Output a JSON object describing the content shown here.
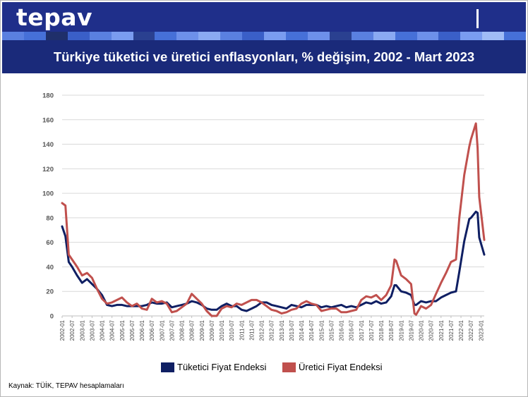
{
  "header": {
    "logo": "tepav"
  },
  "title": "Türkiye tüketici ve üretici enflasyonları, % değişim, 2002 - Mart 2023",
  "source": "Kaynak: TÜİK, TEPAV hesaplamaları",
  "colors": {
    "header": "#1f2f8a",
    "cpi": "#0f1f63",
    "ppi": "#c0504d",
    "grid": "#d9d9d9"
  },
  "chart_data": {
    "type": "line",
    "title": "Türkiye tüketici ve üretici enflasyonları, % değişim, 2002 - Mart 2023",
    "xlabel": "",
    "ylabel": "",
    "ylim": [
      0,
      180
    ],
    "yticks": [
      0,
      20,
      40,
      60,
      80,
      100,
      120,
      140,
      160,
      180
    ],
    "grid": true,
    "legend": "bottom",
    "xticks": [
      "2002-01",
      "2002-07",
      "2003-01",
      "2003-07",
      "2004-01",
      "2004-07",
      "2005-01",
      "2005-07",
      "2006-01",
      "2006-07",
      "2007-01",
      "2007-07",
      "2008-01",
      "2008-07",
      "2009-01",
      "2009-07",
      "2010-01",
      "2010-07",
      "2011-01",
      "2011-07",
      "2012-01",
      "2012-07",
      "2013-01",
      "2013-07",
      "2014-01",
      "2014-07",
      "2015-01",
      "2015-07",
      "2016-01",
      "2016-07",
      "2017-01",
      "2017-07",
      "2018-01",
      "2018-07",
      "2019-01",
      "2019-07",
      "2020-01",
      "2020-07",
      "2021-01",
      "2021-07",
      "2022-01",
      "2022-07",
      "2023-01"
    ],
    "series": [
      {
        "name": "Tüketici Fiyat Endeksi",
        "color": "#0f1f63",
        "points": [
          [
            "2002-01",
            73
          ],
          [
            "2002-03",
            65
          ],
          [
            "2002-05",
            44
          ],
          [
            "2002-07",
            40
          ],
          [
            "2002-10",
            33
          ],
          [
            "2003-01",
            27
          ],
          [
            "2003-04",
            30
          ],
          [
            "2003-07",
            26
          ],
          [
            "2003-10",
            22
          ],
          [
            "2004-01",
            17
          ],
          [
            "2004-04",
            9
          ],
          [
            "2004-07",
            8
          ],
          [
            "2004-10",
            9
          ],
          [
            "2005-01",
            9
          ],
          [
            "2005-04",
            8
          ],
          [
            "2005-07",
            8
          ],
          [
            "2005-10",
            8
          ],
          [
            "2006-01",
            8
          ],
          [
            "2006-04",
            9
          ],
          [
            "2006-07",
            11
          ],
          [
            "2006-10",
            10
          ],
          [
            "2007-01",
            10
          ],
          [
            "2007-04",
            11
          ],
          [
            "2007-07",
            7
          ],
          [
            "2007-10",
            8
          ],
          [
            "2008-01",
            9
          ],
          [
            "2008-04",
            10
          ],
          [
            "2008-07",
            12
          ],
          [
            "2008-10",
            11
          ],
          [
            "2009-01",
            9
          ],
          [
            "2009-04",
            6
          ],
          [
            "2009-07",
            5
          ],
          [
            "2009-10",
            5
          ],
          [
            "2010-01",
            8
          ],
          [
            "2010-04",
            10
          ],
          [
            "2010-07",
            8
          ],
          [
            "2010-10",
            8
          ],
          [
            "2011-01",
            5
          ],
          [
            "2011-04",
            4
          ],
          [
            "2011-07",
            6
          ],
          [
            "2011-10",
            8
          ],
          [
            "2012-01",
            11
          ],
          [
            "2012-04",
            11
          ],
          [
            "2012-07",
            9
          ],
          [
            "2012-10",
            8
          ],
          [
            "2013-01",
            7
          ],
          [
            "2013-04",
            6
          ],
          [
            "2013-07",
            9
          ],
          [
            "2013-10",
            8
          ],
          [
            "2014-01",
            7
          ],
          [
            "2014-04",
            9
          ],
          [
            "2014-07",
            9
          ],
          [
            "2014-10",
            9
          ],
          [
            "2015-01",
            7
          ],
          [
            "2015-04",
            8
          ],
          [
            "2015-07",
            7
          ],
          [
            "2015-10",
            8
          ],
          [
            "2016-01",
            9
          ],
          [
            "2016-04",
            7
          ],
          [
            "2016-07",
            8
          ],
          [
            "2016-10",
            7
          ],
          [
            "2017-01",
            9
          ],
          [
            "2017-04",
            11
          ],
          [
            "2017-07",
            10
          ],
          [
            "2017-10",
            12
          ],
          [
            "2018-01",
            10
          ],
          [
            "2018-04",
            11
          ],
          [
            "2018-07",
            16
          ],
          [
            "2018-09",
            25
          ],
          [
            "2018-10",
            25
          ],
          [
            "2019-01",
            20
          ],
          [
            "2019-04",
            19
          ],
          [
            "2019-07",
            17
          ],
          [
            "2019-09",
            9
          ],
          [
            "2019-10",
            9
          ],
          [
            "2020-01",
            12
          ],
          [
            "2020-04",
            11
          ],
          [
            "2020-07",
            12
          ],
          [
            "2020-10",
            12
          ],
          [
            "2021-01",
            15
          ],
          [
            "2021-04",
            17
          ],
          [
            "2021-07",
            19
          ],
          [
            "2021-10",
            20
          ],
          [
            "2021-12",
            36
          ],
          [
            "2022-03",
            61
          ],
          [
            "2022-06",
            79
          ],
          [
            "2022-07",
            80
          ],
          [
            "2022-10",
            85
          ],
          [
            "2022-11",
            84
          ],
          [
            "2022-12",
            64
          ],
          [
            "2023-03",
            50
          ]
        ]
      },
      {
        "name": "Üretici Fiyat Endeksi",
        "color": "#c0504d",
        "points": [
          [
            "2002-01",
            92
          ],
          [
            "2002-03",
            90
          ],
          [
            "2002-05",
            50
          ],
          [
            "2002-07",
            46
          ],
          [
            "2002-10",
            40
          ],
          [
            "2003-01",
            33
          ],
          [
            "2003-04",
            35
          ],
          [
            "2003-07",
            31
          ],
          [
            "2003-10",
            22
          ],
          [
            "2004-01",
            14
          ],
          [
            "2004-04",
            10
          ],
          [
            "2004-07",
            11
          ],
          [
            "2004-10",
            13
          ],
          [
            "2005-01",
            15
          ],
          [
            "2005-04",
            11
          ],
          [
            "2005-07",
            8
          ],
          [
            "2005-10",
            10
          ],
          [
            "2006-01",
            6
          ],
          [
            "2006-04",
            5
          ],
          [
            "2006-07",
            14
          ],
          [
            "2006-10",
            11
          ],
          [
            "2007-01",
            12
          ],
          [
            "2007-04",
            10
          ],
          [
            "2007-07",
            3
          ],
          [
            "2007-10",
            4
          ],
          [
            "2008-01",
            7
          ],
          [
            "2008-04",
            10
          ],
          [
            "2008-07",
            18
          ],
          [
            "2008-10",
            14
          ],
          [
            "2009-01",
            10
          ],
          [
            "2009-04",
            4
          ],
          [
            "2009-07",
            0
          ],
          [
            "2009-10",
            0
          ],
          [
            "2010-01",
            6
          ],
          [
            "2010-04",
            8
          ],
          [
            "2010-07",
            7
          ],
          [
            "2010-10",
            10
          ],
          [
            "2011-01",
            9
          ],
          [
            "2011-04",
            11
          ],
          [
            "2011-07",
            13
          ],
          [
            "2011-10",
            13
          ],
          [
            "2012-01",
            11
          ],
          [
            "2012-04",
            8
          ],
          [
            "2012-07",
            5
          ],
          [
            "2012-10",
            4
          ],
          [
            "2013-01",
            2
          ],
          [
            "2013-04",
            3
          ],
          [
            "2013-07",
            5
          ],
          [
            "2013-10",
            6
          ],
          [
            "2014-01",
            10
          ],
          [
            "2014-04",
            12
          ],
          [
            "2014-07",
            10
          ],
          [
            "2014-10",
            9
          ],
          [
            "2015-01",
            4
          ],
          [
            "2015-04",
            5
          ],
          [
            "2015-07",
            6
          ],
          [
            "2015-10",
            6
          ],
          [
            "2016-01",
            3
          ],
          [
            "2016-04",
            3
          ],
          [
            "2016-07",
            4
          ],
          [
            "2016-10",
            5
          ],
          [
            "2017-01",
            13
          ],
          [
            "2017-04",
            16
          ],
          [
            "2017-07",
            15
          ],
          [
            "2017-10",
            17
          ],
          [
            "2018-01",
            13
          ],
          [
            "2018-04",
            17
          ],
          [
            "2018-07",
            25
          ],
          [
            "2018-09",
            46
          ],
          [
            "2018-10",
            45
          ],
          [
            "2019-01",
            33
          ],
          [
            "2019-04",
            30
          ],
          [
            "2019-07",
            26
          ],
          [
            "2019-09",
            2
          ],
          [
            "2019-10",
            1
          ],
          [
            "2020-01",
            8
          ],
          [
            "2020-04",
            6
          ],
          [
            "2020-07",
            9
          ],
          [
            "2020-10",
            18
          ],
          [
            "2021-01",
            27
          ],
          [
            "2021-04",
            35
          ],
          [
            "2021-07",
            44
          ],
          [
            "2021-10",
            46
          ],
          [
            "2021-12",
            80
          ],
          [
            "2022-03",
            115
          ],
          [
            "2022-06",
            138
          ],
          [
            "2022-07",
            144
          ],
          [
            "2022-10",
            157
          ],
          [
            "2022-11",
            137
          ],
          [
            "2022-12",
            97
          ],
          [
            "2023-03",
            62
          ]
        ]
      }
    ]
  }
}
